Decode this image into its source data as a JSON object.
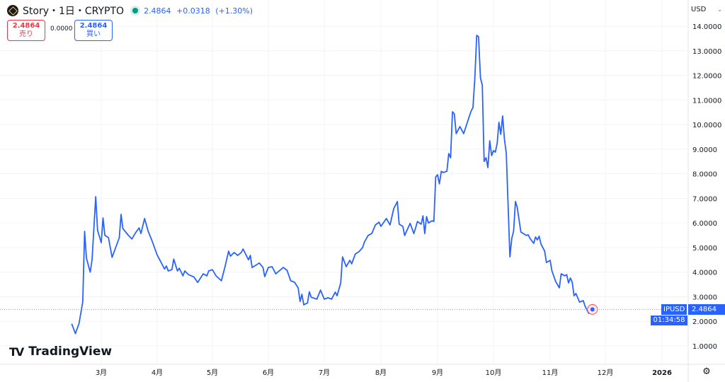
{
  "header": {
    "symbol": "Story・1日・CRYPTO",
    "last": "2.4864",
    "change": "+0.0318",
    "change_pct": "(+1.30%)",
    "status_color": "#089981"
  },
  "trade": {
    "sell_price": "2.4864",
    "sell_label": "売り",
    "spread": "0.0000",
    "buy_price": "2.4864",
    "buy_label": "買い"
  },
  "currency": "USD",
  "brand": "TradingView",
  "price_line": {
    "ticker": "IPUSD",
    "price": "2.4864",
    "countdown": "01:34:58"
  },
  "chart_data": {
    "type": "line",
    "line_color": "#2962ff",
    "ylim": [
      1,
      14
    ],
    "y_ticks": [
      "1.0000",
      "2.0000",
      "3.0000",
      "4.0000",
      "5.0000",
      "6.0000",
      "7.0000",
      "8.0000",
      "9.0000",
      "10.0000",
      "11.0000",
      "12.0000",
      "13.0000",
      "14.0000"
    ],
    "x_ticks": [
      {
        "date": "2025-03-01",
        "label": "3月"
      },
      {
        "date": "2025-04-01",
        "label": "4月"
      },
      {
        "date": "2025-05-01",
        "label": "5月"
      },
      {
        "date": "2025-06-01",
        "label": "6月"
      },
      {
        "date": "2025-07-01",
        "label": "7月"
      },
      {
        "date": "2025-08-01",
        "label": "8月"
      },
      {
        "date": "2025-09-01",
        "label": "9月"
      },
      {
        "date": "2025-10-01",
        "label": "10月"
      },
      {
        "date": "2025-11-01",
        "label": "11月"
      },
      {
        "date": "2025-12-01",
        "label": "12月"
      },
      {
        "date": "2026-01-01",
        "label": "2026"
      }
    ],
    "grid": true,
    "series": [
      [
        "2025-02-13",
        1.9
      ],
      [
        "2025-02-15",
        1.5
      ],
      [
        "2025-02-17",
        1.92
      ],
      [
        "2025-02-19",
        2.8
      ],
      [
        "2025-02-20",
        5.66
      ],
      [
        "2025-02-21",
        4.57
      ],
      [
        "2025-02-23",
        4.0
      ],
      [
        "2025-02-24",
        4.5
      ],
      [
        "2025-02-26",
        7.07
      ],
      [
        "2025-02-27",
        5.7
      ],
      [
        "2025-03-01",
        5.2
      ],
      [
        "2025-03-02",
        6.2
      ],
      [
        "2025-03-03",
        5.5
      ],
      [
        "2025-03-05",
        5.4
      ],
      [
        "2025-03-07",
        4.6
      ],
      [
        "2025-03-11",
        5.4
      ],
      [
        "2025-03-12",
        6.35
      ],
      [
        "2025-03-13",
        5.77
      ],
      [
        "2025-03-16",
        5.5
      ],
      [
        "2025-03-18",
        5.35
      ],
      [
        "2025-03-20",
        5.6
      ],
      [
        "2025-03-22",
        5.8
      ],
      [
        "2025-03-23",
        5.57
      ],
      [
        "2025-03-25",
        6.18
      ],
      [
        "2025-03-27",
        5.66
      ],
      [
        "2025-03-29",
        5.3
      ],
      [
        "2025-04-01",
        4.7
      ],
      [
        "2025-04-05",
        4.13
      ],
      [
        "2025-04-06",
        4.25
      ],
      [
        "2025-04-07",
        4.05
      ],
      [
        "2025-04-09",
        4.1
      ],
      [
        "2025-04-10",
        4.53
      ],
      [
        "2025-04-12",
        4.05
      ],
      [
        "2025-04-13",
        4.16
      ],
      [
        "2025-04-15",
        3.85
      ],
      [
        "2025-04-16",
        4.05
      ],
      [
        "2025-04-18",
        3.9
      ],
      [
        "2025-04-21",
        3.8
      ],
      [
        "2025-04-23",
        3.58
      ],
      [
        "2025-04-26",
        3.93
      ],
      [
        "2025-04-28",
        3.85
      ],
      [
        "2025-04-29",
        4.05
      ],
      [
        "2025-05-01",
        4.1
      ],
      [
        "2025-05-03",
        3.85
      ],
      [
        "2025-05-06",
        3.65
      ],
      [
        "2025-05-08",
        4.22
      ],
      [
        "2025-05-10",
        4.85
      ],
      [
        "2025-05-11",
        4.65
      ],
      [
        "2025-05-13",
        4.8
      ],
      [
        "2025-05-15",
        4.68
      ],
      [
        "2025-05-17",
        4.8
      ],
      [
        "2025-05-18",
        4.94
      ],
      [
        "2025-05-21",
        4.5
      ],
      [
        "2025-05-22",
        4.68
      ],
      [
        "2025-05-23",
        4.19
      ],
      [
        "2025-05-25",
        4.28
      ],
      [
        "2025-05-27",
        4.37
      ],
      [
        "2025-05-29",
        4.19
      ],
      [
        "2025-05-30",
        3.82
      ],
      [
        "2025-06-01",
        4.19
      ],
      [
        "2025-06-03",
        4.22
      ],
      [
        "2025-06-05",
        3.93
      ],
      [
        "2025-06-09",
        4.19
      ],
      [
        "2025-06-11",
        4.08
      ],
      [
        "2025-06-13",
        3.65
      ],
      [
        "2025-06-15",
        3.59
      ],
      [
        "2025-06-17",
        3.36
      ],
      [
        "2025-06-18",
        2.81
      ],
      [
        "2025-06-19",
        3.1
      ],
      [
        "2025-06-20",
        2.67
      ],
      [
        "2025-06-22",
        2.75
      ],
      [
        "2025-06-23",
        3.2
      ],
      [
        "2025-06-24",
        2.98
      ],
      [
        "2025-06-27",
        2.9
      ],
      [
        "2025-06-29",
        3.27
      ],
      [
        "2025-07-01",
        2.9
      ],
      [
        "2025-07-03",
        2.96
      ],
      [
        "2025-07-05",
        2.9
      ],
      [
        "2025-07-07",
        3.19
      ],
      [
        "2025-07-08",
        3.04
      ],
      [
        "2025-07-10",
        3.56
      ],
      [
        "2025-07-11",
        4.62
      ],
      [
        "2025-07-13",
        4.22
      ],
      [
        "2025-07-15",
        4.48
      ],
      [
        "2025-07-16",
        4.34
      ],
      [
        "2025-07-18",
        4.74
      ],
      [
        "2025-07-20",
        4.83
      ],
      [
        "2025-07-22",
        5.0
      ],
      [
        "2025-07-23",
        5.23
      ],
      [
        "2025-07-25",
        5.49
      ],
      [
        "2025-07-27",
        5.57
      ],
      [
        "2025-07-29",
        5.92
      ],
      [
        "2025-07-31",
        6.03
      ],
      [
        "2025-08-01",
        5.86
      ],
      [
        "2025-08-04",
        6.18
      ],
      [
        "2025-08-06",
        5.92
      ],
      [
        "2025-08-08",
        6.58
      ],
      [
        "2025-08-10",
        6.87
      ],
      [
        "2025-08-11",
        5.95
      ],
      [
        "2025-08-13",
        5.86
      ],
      [
        "2025-08-14",
        5.49
      ],
      [
        "2025-08-17",
        5.98
      ],
      [
        "2025-08-19",
        5.57
      ],
      [
        "2025-08-20",
        5.8
      ],
      [
        "2025-08-21",
        6.06
      ],
      [
        "2025-08-23",
        5.95
      ],
      [
        "2025-08-24",
        6.29
      ],
      [
        "2025-08-25",
        5.57
      ],
      [
        "2025-08-26",
        6.26
      ],
      [
        "2025-08-27",
        6.0
      ],
      [
        "2025-08-29",
        6.09
      ],
      [
        "2025-08-30",
        6.06
      ],
      [
        "2025-08-31",
        7.87
      ],
      [
        "2025-09-01",
        7.96
      ],
      [
        "2025-09-02",
        7.59
      ],
      [
        "2025-09-03",
        8.1
      ],
      [
        "2025-09-04",
        8.05
      ],
      [
        "2025-09-06",
        8.1
      ],
      [
        "2025-09-07",
        8.82
      ],
      [
        "2025-09-08",
        8.65
      ],
      [
        "2025-09-09",
        10.52
      ],
      [
        "2025-09-10",
        10.43
      ],
      [
        "2025-09-11",
        9.63
      ],
      [
        "2025-09-13",
        9.92
      ],
      [
        "2025-09-15",
        9.63
      ],
      [
        "2025-09-17",
        10.09
      ],
      [
        "2025-09-19",
        10.55
      ],
      [
        "2025-09-20",
        10.69
      ],
      [
        "2025-09-21",
        11.9
      ],
      [
        "2025-09-22",
        13.63
      ],
      [
        "2025-09-23",
        13.57
      ],
      [
        "2025-09-24",
        11.9
      ],
      [
        "2025-09-25",
        11.6
      ],
      [
        "2025-09-26",
        8.5
      ],
      [
        "2025-09-27",
        8.65
      ],
      [
        "2025-09-28",
        8.25
      ],
      [
        "2025-09-29",
        9.34
      ],
      [
        "2025-09-30",
        8.74
      ],
      [
        "2025-10-01",
        8.94
      ],
      [
        "2025-10-02",
        8.88
      ],
      [
        "2025-10-03",
        9.23
      ],
      [
        "2025-10-04",
        10.09
      ],
      [
        "2025-10-05",
        9.6
      ],
      [
        "2025-10-06",
        10.35
      ],
      [
        "2025-10-07",
        9.4
      ],
      [
        "2025-10-08",
        8.82
      ],
      [
        "2025-10-10",
        4.62
      ],
      [
        "2025-10-11",
        5.37
      ],
      [
        "2025-10-12",
        5.66
      ],
      [
        "2025-10-13",
        6.87
      ],
      [
        "2025-10-14",
        6.64
      ],
      [
        "2025-10-16",
        5.63
      ],
      [
        "2025-10-19",
        5.49
      ],
      [
        "2025-10-20",
        5.52
      ],
      [
        "2025-10-21",
        5.37
      ],
      [
        "2025-10-23",
        5.17
      ],
      [
        "2025-10-24",
        5.43
      ],
      [
        "2025-10-25",
        5.31
      ],
      [
        "2025-10-26",
        5.46
      ],
      [
        "2025-10-27",
        5.14
      ],
      [
        "2025-10-29",
        4.85
      ],
      [
        "2025-10-30",
        4.39
      ],
      [
        "2025-11-01",
        4.48
      ],
      [
        "2025-11-02",
        4.05
      ],
      [
        "2025-11-04",
        3.62
      ],
      [
        "2025-11-06",
        3.36
      ],
      [
        "2025-11-07",
        3.93
      ],
      [
        "2025-11-09",
        3.85
      ],
      [
        "2025-11-10",
        3.9
      ],
      [
        "2025-11-11",
        3.56
      ],
      [
        "2025-11-12",
        3.76
      ],
      [
        "2025-11-13",
        3.59
      ],
      [
        "2025-11-14",
        3.04
      ],
      [
        "2025-11-15",
        3.13
      ],
      [
        "2025-11-17",
        2.78
      ],
      [
        "2025-11-19",
        2.84
      ],
      [
        "2025-11-20",
        2.61
      ],
      [
        "2025-11-22",
        2.32
      ],
      [
        "2025-11-24",
        2.4864
      ]
    ]
  }
}
